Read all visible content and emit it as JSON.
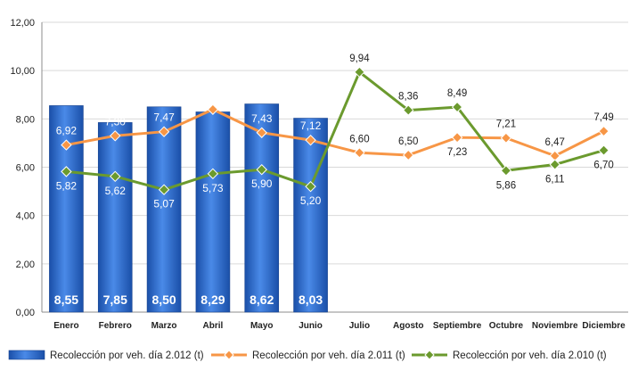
{
  "chart_data": {
    "type": "bar",
    "categories": [
      "Enero",
      "Febrero",
      "Marzo",
      "Abril",
      "Mayo",
      "Junio",
      "Julio",
      "Agosto",
      "Septiembre",
      "Octubre",
      "Noviembre",
      "Diciembre"
    ],
    "ylim": [
      0,
      12
    ],
    "yticks": [
      "0,00",
      "2,00",
      "4,00",
      "6,00",
      "8,00",
      "10,00",
      "12,00"
    ],
    "grid": true,
    "legend_position": "bottom",
    "series": [
      {
        "name": "Recolección por veh. día 2.012 (t)",
        "type": "bar",
        "color": "#2f6fd6",
        "values": [
          8.55,
          7.85,
          8.5,
          8.29,
          8.62,
          8.03,
          null,
          null,
          null,
          null,
          null,
          null
        ],
        "labels": [
          "8,55",
          "7,85",
          "8,50",
          "8,29",
          "8,62",
          "8,03",
          "",
          "",
          "",
          "",
          "",
          ""
        ]
      },
      {
        "name": "Recolección por veh. día 2.011 (t)",
        "type": "line",
        "color": "#f79646",
        "values": [
          6.92,
          7.3,
          7.47,
          8.39,
          7.43,
          7.12,
          6.6,
          6.5,
          7.23,
          7.21,
          6.47,
          7.49
        ],
        "labels": [
          "6,92",
          "7,30",
          "7,47",
          "8,39",
          "7,43",
          "7,12",
          "6,60",
          "6,50",
          "7,23",
          "7,21",
          "6,47",
          "7,49"
        ]
      },
      {
        "name": "Recolección por veh. día 2.010 (t)",
        "type": "line",
        "color": "#6b9a2e",
        "values": [
          5.82,
          5.62,
          5.07,
          5.73,
          5.9,
          5.2,
          9.94,
          8.36,
          8.49,
          5.86,
          6.11,
          6.7
        ],
        "labels": [
          "5,82",
          "5,62",
          "5,07",
          "5,73",
          "5,90",
          "5,20",
          "9,94",
          "8,36",
          "8,49",
          "5,86",
          "6,11",
          "6,70"
        ]
      }
    ]
  }
}
